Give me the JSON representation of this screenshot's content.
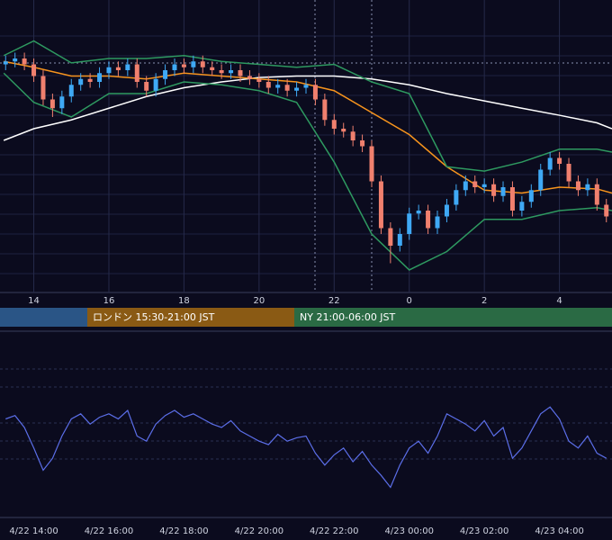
{
  "chart_data": [
    {
      "type": "candlestick",
      "x": [
        13.25,
        13.5,
        13.75,
        14,
        14.25,
        14.5,
        14.75,
        15,
        15.25,
        15.5,
        15.75,
        16,
        16.25,
        16.5,
        16.75,
        17,
        17.25,
        17.5,
        17.75,
        18,
        18.25,
        18.5,
        18.75,
        19,
        19.25,
        19.5,
        19.75,
        20,
        20.25,
        20.5,
        20.75,
        21,
        21.25,
        21.5,
        21.75,
        22,
        22.25,
        22.5,
        22.75,
        23,
        23.25,
        23.5,
        23.75,
        24,
        24.25,
        24.5,
        24.75,
        25,
        25.25,
        25.5,
        25.75,
        26,
        26.25,
        26.5,
        26.75,
        27,
        27.25,
        27.5,
        27.75,
        28,
        28.25,
        28.5,
        28.75,
        29,
        29.25
      ],
      "open": [
        78,
        79,
        80,
        78,
        74,
        66,
        63,
        67,
        71,
        73,
        72,
        75,
        77,
        76,
        78,
        72,
        69,
        73,
        76,
        78,
        77,
        79,
        77,
        76,
        75,
        76,
        74,
        73,
        72,
        70,
        71,
        69,
        70,
        71,
        66,
        59,
        56,
        55,
        52,
        50,
        38,
        22,
        16,
        20,
        27,
        28,
        22,
        26,
        30,
        35,
        38,
        36,
        37,
        33,
        36,
        28,
        31,
        35,
        42,
        46,
        44,
        38,
        35,
        37,
        30
      ],
      "high": [
        81,
        82,
        82,
        80,
        76,
        68,
        69,
        73,
        75,
        75,
        77,
        79,
        79,
        80,
        80,
        74,
        75,
        78,
        80,
        80,
        81,
        81,
        79,
        78,
        78,
        78,
        76,
        75,
        74,
        73,
        73,
        72,
        73,
        73,
        68,
        61,
        58,
        57,
        54,
        52,
        40,
        24,
        22,
        29,
        30,
        30,
        28,
        32,
        37,
        40,
        40,
        39,
        39,
        38,
        38,
        33,
        37,
        44,
        48,
        48,
        46,
        40,
        39,
        39,
        32
      ],
      "low": [
        76,
        77,
        76,
        72,
        64,
        60,
        61,
        65,
        69,
        70,
        70,
        73,
        74,
        74,
        70,
        67,
        67,
        71,
        74,
        75,
        75,
        75,
        74,
        73,
        73,
        72,
        71,
        70,
        68,
        68,
        67,
        67,
        68,
        64,
        57,
        54,
        53,
        50,
        48,
        36,
        20,
        10,
        14,
        18,
        25,
        20,
        20,
        24,
        28,
        33,
        34,
        34,
        31,
        31,
        26,
        26,
        29,
        33,
        40,
        42,
        36,
        33,
        33,
        28,
        24
      ],
      "close": [
        79,
        80,
        78,
        74,
        66,
        63,
        67,
        71,
        73,
        72,
        75,
        77,
        76,
        78,
        72,
        69,
        73,
        76,
        78,
        77,
        79,
        77,
        76,
        75,
        76,
        74,
        73,
        72,
        70,
        71,
        69,
        70,
        71,
        66,
        59,
        56,
        55,
        52,
        50,
        38,
        22,
        16,
        20,
        27,
        28,
        22,
        26,
        30,
        35,
        38,
        36,
        37,
        33,
        36,
        28,
        31,
        35,
        42,
        46,
        44,
        38,
        35,
        37,
        30,
        26
      ],
      "up_color": "#3fa9f5",
      "down_color": "#f0806e",
      "lines": [
        {
          "color": "#ffffff",
          "x": [
            13.2,
            14,
            15,
            16,
            17,
            18,
            19,
            20,
            21,
            22,
            23,
            24,
            25,
            26,
            27,
            28,
            29,
            29.4
          ],
          "values": [
            52,
            56,
            59,
            63,
            67,
            70,
            72,
            73.5,
            74,
            74,
            73,
            71,
            68,
            65.5,
            63,
            60.6,
            58,
            56
          ]
        },
        {
          "color": "#f7941d",
          "x": [
            13.2,
            14,
            15,
            16,
            17,
            18,
            19,
            20,
            21,
            22,
            23,
            24,
            25,
            26,
            27,
            28,
            29,
            29.4
          ],
          "values": [
            79,
            77,
            74,
            74,
            73,
            75,
            74,
            73,
            72,
            69,
            61.5,
            54,
            43,
            35,
            34,
            36,
            35.4,
            34
          ]
        },
        {
          "color": "#2e9960",
          "x": [
            13.2,
            14,
            15,
            16,
            17,
            18,
            19,
            20,
            21,
            22,
            23,
            24,
            25,
            26,
            27,
            28,
            29,
            29.4
          ],
          "values": [
            81,
            86,
            78.5,
            80,
            80,
            81,
            79,
            78,
            77,
            78,
            72,
            68,
            43,
            41.5,
            44.6,
            49,
            49,
            48
          ]
        },
        {
          "color": "#2e9960",
          "x": [
            13.2,
            14,
            15,
            16,
            17,
            18,
            19,
            20,
            21,
            22,
            23,
            24,
            25,
            26,
            27,
            28,
            29,
            29.4
          ],
          "values": [
            75,
            65,
            60,
            68,
            68,
            72,
            71,
            69,
            65,
            44.6,
            20,
            7.7,
            14,
            25,
            25,
            28,
            29,
            28
          ]
        }
      ],
      "xlim": [
        13.1,
        29.4
      ],
      "ylim": [
        0,
        100
      ],
      "xticks": [
        14,
        16,
        18,
        20,
        22,
        {
          "value": 24,
          "label": "0"
        },
        {
          "value": 26,
          "label": "2"
        },
        {
          "value": 28,
          "label": "4"
        }
      ],
      "sessions": [
        {
          "label": "ロンドン 15:30-21:00 JST"
        },
        {
          "label": "NY 21:00-06:00 JST"
        }
      ]
    },
    {
      "type": "line",
      "x": [
        13.25,
        13.5,
        13.75,
        14,
        14.25,
        14.5,
        14.75,
        15,
        15.25,
        15.5,
        15.75,
        16,
        16.25,
        16.5,
        16.75,
        17,
        17.25,
        17.5,
        17.75,
        18,
        18.25,
        18.5,
        18.75,
        19,
        19.25,
        19.5,
        19.75,
        20,
        20.25,
        20.5,
        20.75,
        21,
        21.25,
        21.5,
        21.75,
        22,
        22.25,
        22.5,
        22.75,
        23,
        23.25,
        23.5,
        23.75,
        24,
        24.25,
        24.5,
        24.75,
        25,
        25.25,
        25.5,
        25.75,
        26,
        26.25,
        26.5,
        26.75,
        27,
        27.25,
        27.5,
        27.75,
        28,
        28.25,
        28.5,
        28.75,
        29,
        29.25
      ],
      "values": [
        55,
        57,
        50,
        38,
        25,
        32,
        45,
        55,
        58,
        52,
        56,
        58,
        55,
        60,
        45,
        42,
        52,
        57,
        60,
        56,
        58,
        55,
        52,
        50,
        54,
        48,
        45,
        42,
        40,
        46,
        42,
        44,
        45,
        35,
        28,
        34,
        38,
        30,
        36,
        28,
        22,
        15,
        28,
        38,
        42,
        35,
        45,
        58,
        55,
        52,
        48,
        54,
        45,
        50,
        32,
        38,
        48,
        58,
        62,
        55,
        42,
        38,
        45,
        35,
        32
      ],
      "color": "#5b6ee8",
      "xlim": [
        13.1,
        29.4
      ],
      "ylim": [
        0,
        100
      ],
      "xticks": [
        {
          "value": 14,
          "label": "4/22 14:00"
        },
        {
          "value": 16,
          "label": "4/22 16:00"
        },
        {
          "value": 18,
          "label": "4/22 18:00"
        },
        {
          "value": 20,
          "label": "4/22 20:00"
        },
        {
          "value": 22,
          "label": "4/22 22:00"
        },
        {
          "value": 24,
          "label": "4/23 00:00"
        },
        {
          "value": 26,
          "label": "4/23 02:00"
        },
        {
          "value": 28,
          "label": "4/23 04:00"
        }
      ]
    }
  ]
}
